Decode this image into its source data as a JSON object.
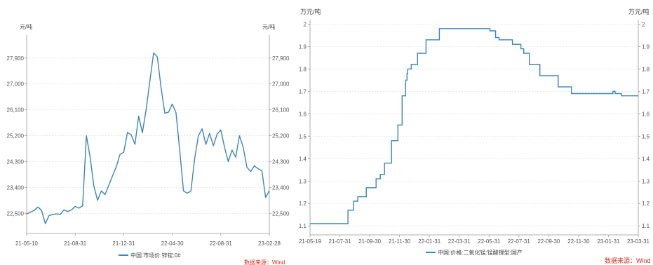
{
  "chart_data": [
    {
      "type": "line",
      "unit_left": "元/吨",
      "unit_right": "元/吨",
      "ylim": [
        21800,
        28700
      ],
      "y_ticks": [
        22500,
        23400,
        24300,
        25200,
        26100,
        27000,
        27900
      ],
      "y_tick_labels": [
        "22,500",
        "23,400",
        "24,300",
        "25,200",
        "26,100",
        "27,000",
        "27,900"
      ],
      "x_tick_labels": [
        "21-05-10",
        "21-08-31",
        "21-12-31",
        "22-04-30",
        "22-08-31",
        "23-02-28"
      ],
      "grid": true,
      "legend_position": "bottom",
      "source": "数据来源：Wind",
      "series": [
        {
          "name": "中国:市场价:锌锭:0#",
          "color": "#3d85b8",
          "values": [
            22480,
            22540,
            22600,
            22720,
            22600,
            22140,
            22420,
            22460,
            22480,
            22460,
            22620,
            22560,
            22620,
            22740,
            22680,
            22760,
            25200,
            24450,
            23450,
            22950,
            23280,
            23150,
            23480,
            23800,
            24120,
            24550,
            24620,
            25310,
            25230,
            24900,
            25880,
            25300,
            26100,
            27100,
            28080,
            27940,
            26880,
            25980,
            26020,
            26300,
            26000,
            24700,
            23280,
            23200,
            23280,
            24400,
            25200,
            25440,
            24900,
            25280,
            24850,
            25250,
            25400,
            24800,
            24300,
            24700,
            24450,
            25200,
            24800,
            24100,
            23950,
            24150,
            24050,
            23980,
            23050,
            23290
          ]
        }
      ]
    },
    {
      "type": "line",
      "unit_left": "万元/吨",
      "unit_right": "万元/吨",
      "ylim": [
        1.06,
        2.02
      ],
      "y_ticks": [
        1.1,
        1.2,
        1.3,
        1.4,
        1.5,
        1.6,
        1.7,
        1.8,
        1.9,
        2.0
      ],
      "y_tick_labels": [
        "1.1",
        "1.2",
        "1.3",
        "1.4",
        "1.5",
        "1.6",
        "1.7",
        "1.8",
        "1.9",
        "2"
      ],
      "x_tick_labels": [
        "21-05-19",
        "21-07-31",
        "21-09-30",
        "21-11-30",
        "22-01-31",
        "22-03-31",
        "22-05-31",
        "22-07-31",
        "22-09-30",
        "22-11-30",
        "23-01-31",
        "23-03-31"
      ],
      "grid": true,
      "legend_position": "bottom",
      "source": "数据来源：Wind",
      "series": [
        {
          "name": "中国:价格:二氧化锰:锰酸锂型:国产",
          "color": "#3d85b8",
          "step": true,
          "x": [
            0,
            54,
            62,
            68,
            80,
            94,
            100,
            106,
            116,
            120,
            125,
            131,
            136,
            138,
            139,
            144,
            153,
            165,
            184,
            256,
            264,
            269,
            272,
            288,
            300,
            304,
            312,
            327,
            353,
            372,
            416,
            431,
            434,
            442,
            443,
            467
          ],
          "y": [
            1.11,
            1.17,
            1.21,
            1.23,
            1.27,
            1.31,
            1.33,
            1.38,
            1.48,
            1.48,
            1.55,
            1.68,
            1.75,
            1.78,
            1.8,
            1.82,
            1.87,
            1.93,
            1.98,
            1.97,
            1.94,
            1.93,
            1.93,
            1.91,
            1.89,
            1.87,
            1.82,
            1.77,
            1.72,
            1.69,
            1.69,
            1.7,
            1.69,
            1.69,
            1.68,
            1.68
          ]
        }
      ]
    }
  ]
}
